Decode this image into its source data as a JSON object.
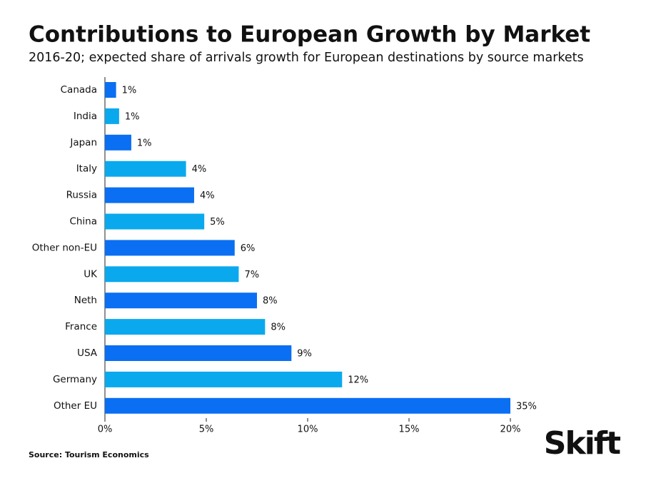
{
  "chart_data": {
    "type": "bar",
    "orientation": "horizontal",
    "title": "Contributions to European Growth by Market",
    "subtitle": "2016-20; expected share of arrivals growth for European destinations by source markets",
    "categories": [
      "Canada",
      "India",
      "Japan",
      "Italy",
      "Russia",
      "China",
      "Other non-EU",
      "UK",
      "Neth",
      "France",
      "USA",
      "Germany",
      "Other EU"
    ],
    "values": [
      0.55,
      0.7,
      1.3,
      4.0,
      4.4,
      4.9,
      6.4,
      6.6,
      7.5,
      7.9,
      9.2,
      11.7,
      35
    ],
    "value_labels": [
      "1%",
      "1%",
      "1%",
      "4%",
      "4%",
      "5%",
      "6%",
      "7%",
      "8%",
      "8%",
      "9%",
      "12%",
      "35%"
    ],
    "colors": [
      "#0a6ff2",
      "#0aa9ee",
      "#0a6ff2",
      "#0aa9ee",
      "#0a6ff2",
      "#0aa9ee",
      "#0a6ff2",
      "#0aa9ee",
      "#0a6ff2",
      "#0aa9ee",
      "#0a6ff2",
      "#0aa9ee",
      "#0a6ff2"
    ],
    "xlim": [
      0,
      20
    ],
    "xticks": [
      {
        "value": 0,
        "label": "0%"
      },
      {
        "value": 5,
        "label": "5%"
      },
      {
        "value": 10,
        "label": "10%"
      },
      {
        "value": 15,
        "label": "15%"
      },
      {
        "value": 20,
        "label": "20%"
      }
    ],
    "grid": false,
    "source": "Source: Tourism Economics",
    "logo": "Skift"
  }
}
